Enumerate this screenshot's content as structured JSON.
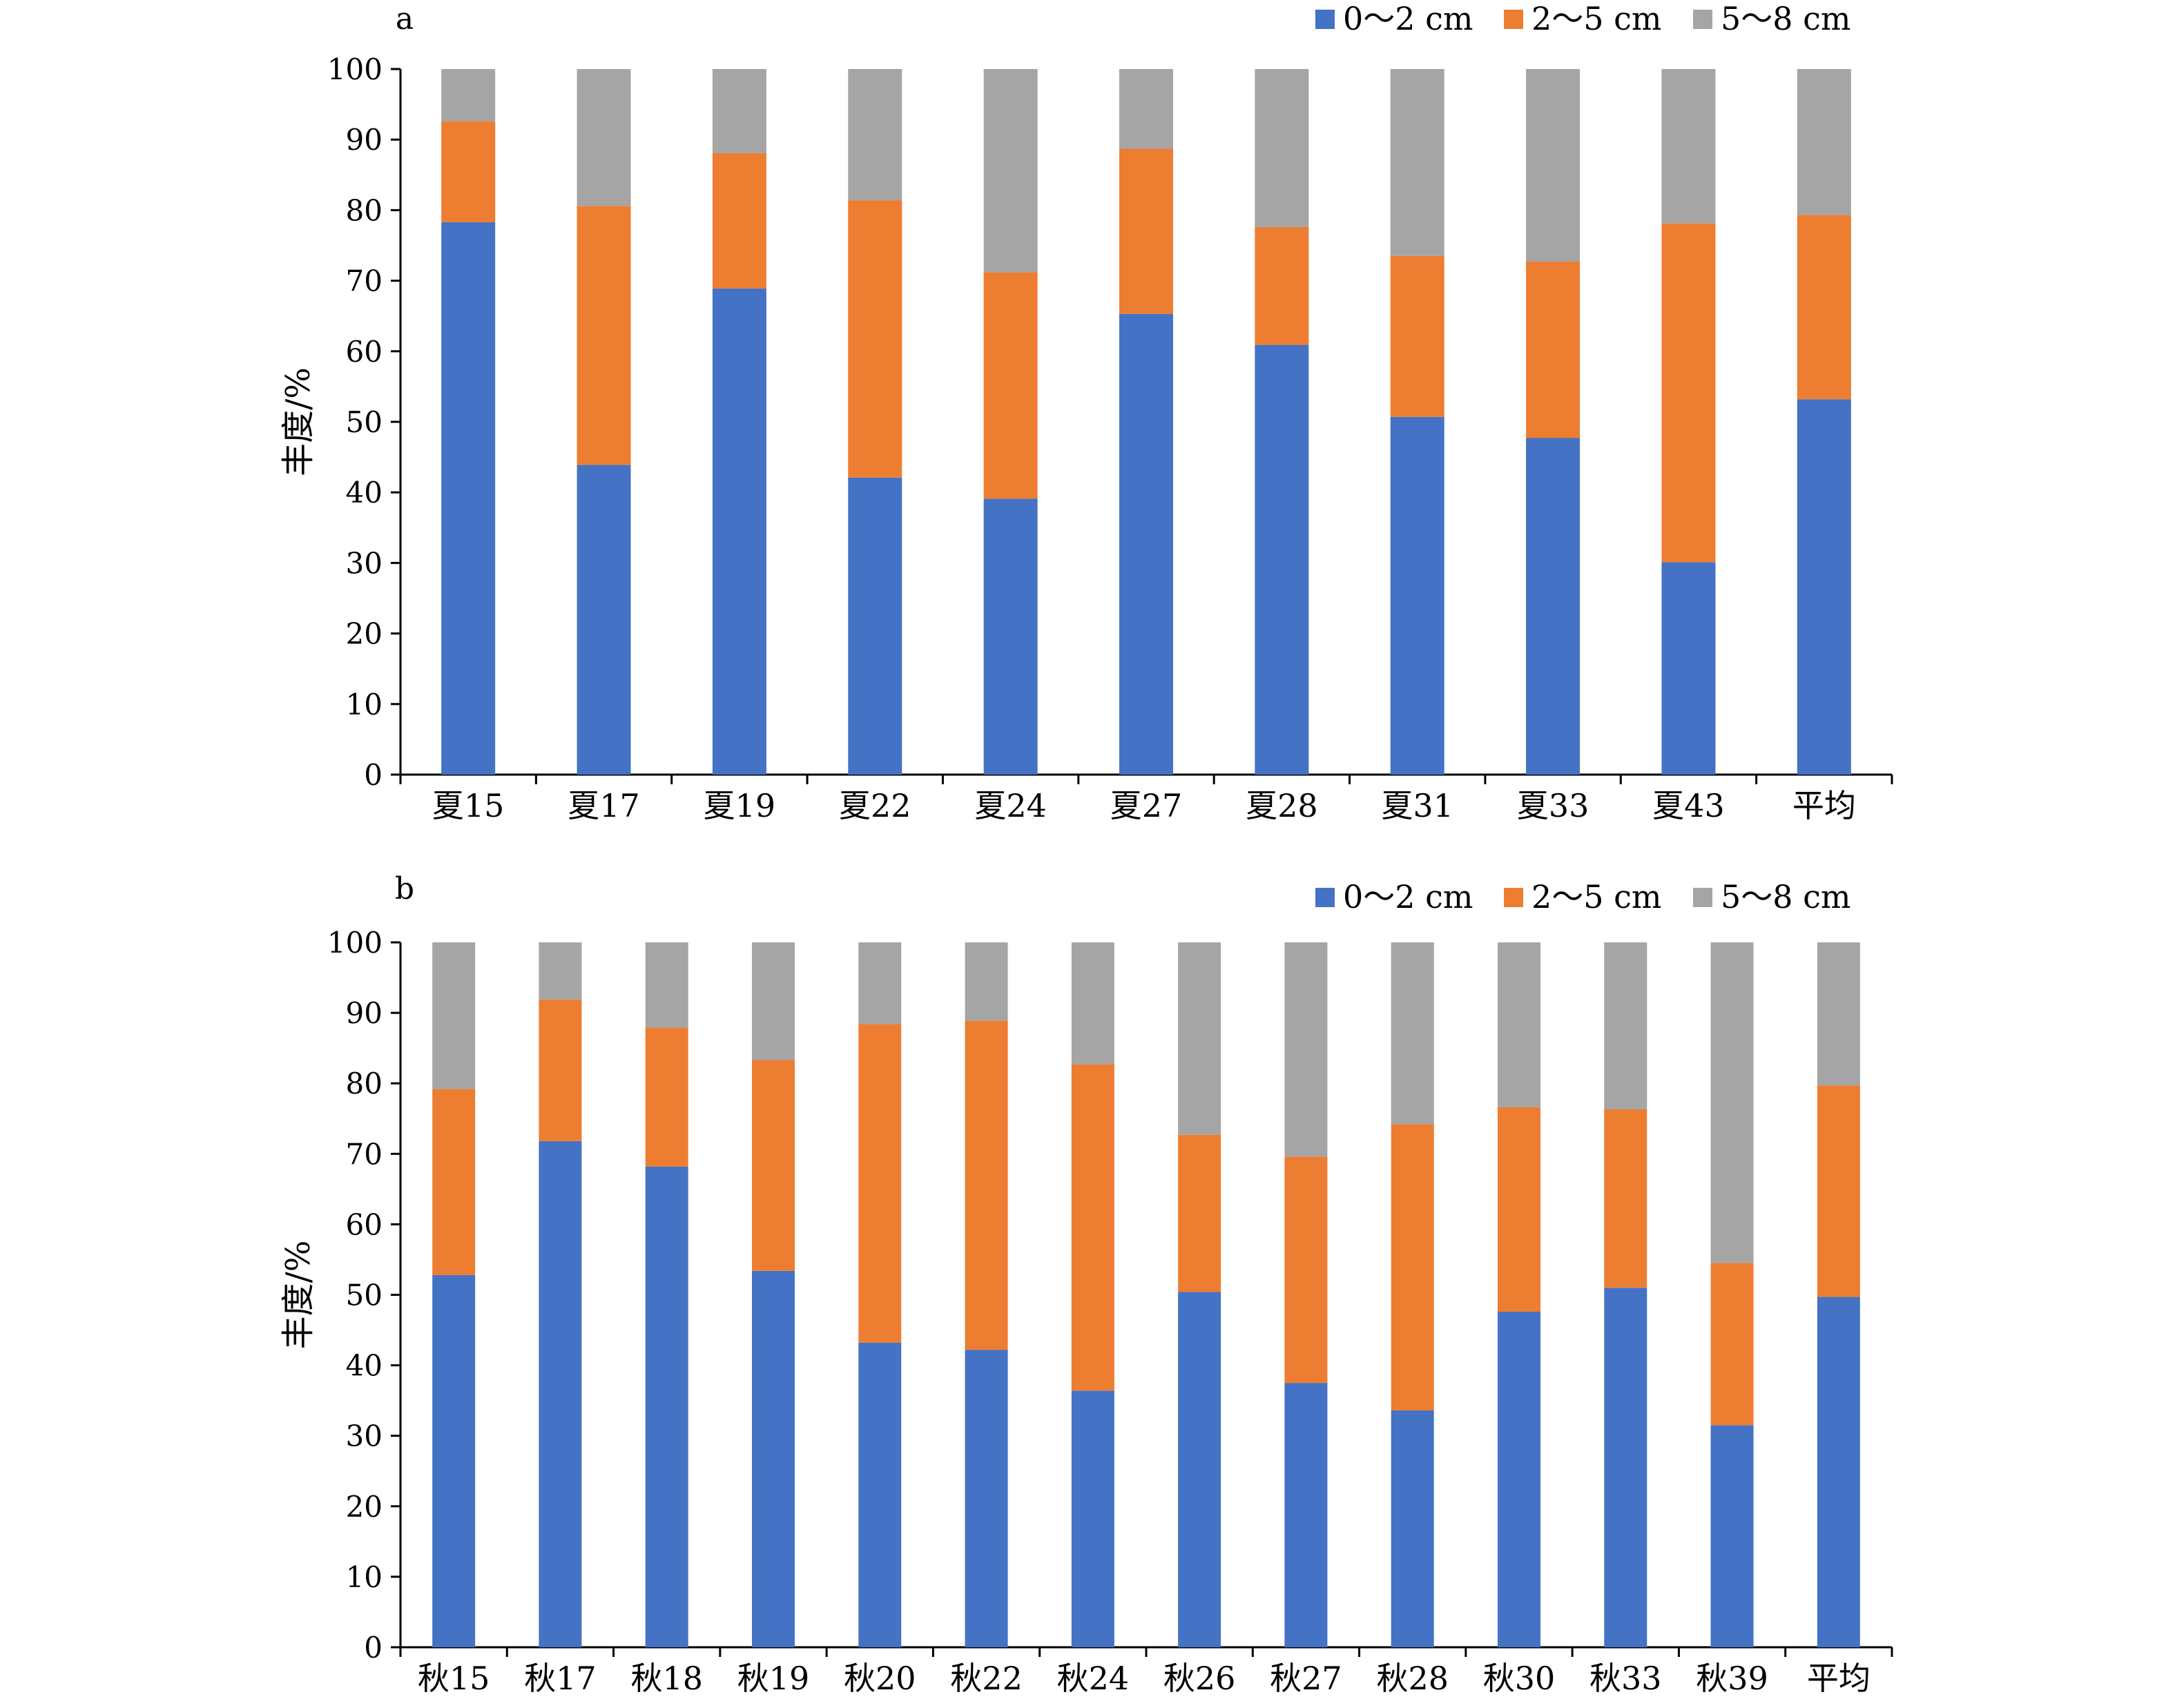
{
  "chart_data": [
    {
      "type": "bar",
      "stacked": true,
      "panel_label": "a",
      "ylabel": "丰度/%",
      "ylim": [
        0,
        100
      ],
      "yticks": [
        0,
        10,
        20,
        30,
        40,
        50,
        60,
        70,
        80,
        90,
        100
      ],
      "grid": false,
      "legend_position": "top-right",
      "categories": [
        "夏15",
        "夏17",
        "夏19",
        "夏22",
        "夏24",
        "夏27",
        "夏28",
        "夏31",
        "夏33",
        "夏43",
        "平均"
      ],
      "series": [
        {
          "name": "0～2 cm",
          "color": "#4472C4",
          "values": [
            78.3,
            43.9,
            68.9,
            42.1,
            39.1,
            65.3,
            60.9,
            50.7,
            47.7,
            30.1,
            53.2
          ]
        },
        {
          "name": "2～5 cm",
          "color": "#ED7D31",
          "values": [
            14.3,
            36.7,
            19.2,
            39.3,
            32.1,
            23.4,
            16.7,
            22.8,
            25.0,
            48.0,
            26.1
          ]
        },
        {
          "name": "5～8 cm",
          "color": "#A5A5A5",
          "values": [
            7.4,
            19.4,
            11.9,
            18.6,
            28.8,
            11.3,
            22.4,
            26.5,
            27.3,
            21.9,
            20.7
          ]
        }
      ]
    },
    {
      "type": "bar",
      "stacked": true,
      "panel_label": "b",
      "ylabel": "丰度/%",
      "ylim": [
        0,
        100
      ],
      "yticks": [
        0,
        10,
        20,
        30,
        40,
        50,
        60,
        70,
        80,
        90,
        100
      ],
      "grid": false,
      "legend_position": "top-right",
      "categories": [
        "秋15",
        "秋17",
        "秋18",
        "秋19",
        "秋20",
        "秋22",
        "秋24",
        "秋26",
        "秋27",
        "秋28",
        "秋30",
        "秋33",
        "秋39",
        "平均"
      ],
      "series": [
        {
          "name": "0～2 cm",
          "color": "#4472C4",
          "values": [
            52.8,
            71.8,
            68.2,
            53.4,
            43.2,
            42.2,
            36.4,
            50.4,
            37.5,
            33.6,
            47.6,
            51.0,
            31.5,
            49.7
          ]
        },
        {
          "name": "2～5 cm",
          "color": "#ED7D31",
          "values": [
            26.4,
            20.1,
            19.7,
            29.9,
            45.2,
            46.7,
            46.3,
            22.3,
            32.1,
            40.6,
            29.0,
            25.3,
            23.0,
            30.0
          ]
        },
        {
          "name": "5～8 cm",
          "color": "#A5A5A5",
          "values": [
            20.8,
            8.1,
            12.1,
            16.7,
            11.6,
            11.1,
            17.3,
            27.3,
            30.4,
            25.8,
            23.4,
            23.7,
            45.5,
            20.3
          ]
        }
      ]
    }
  ]
}
